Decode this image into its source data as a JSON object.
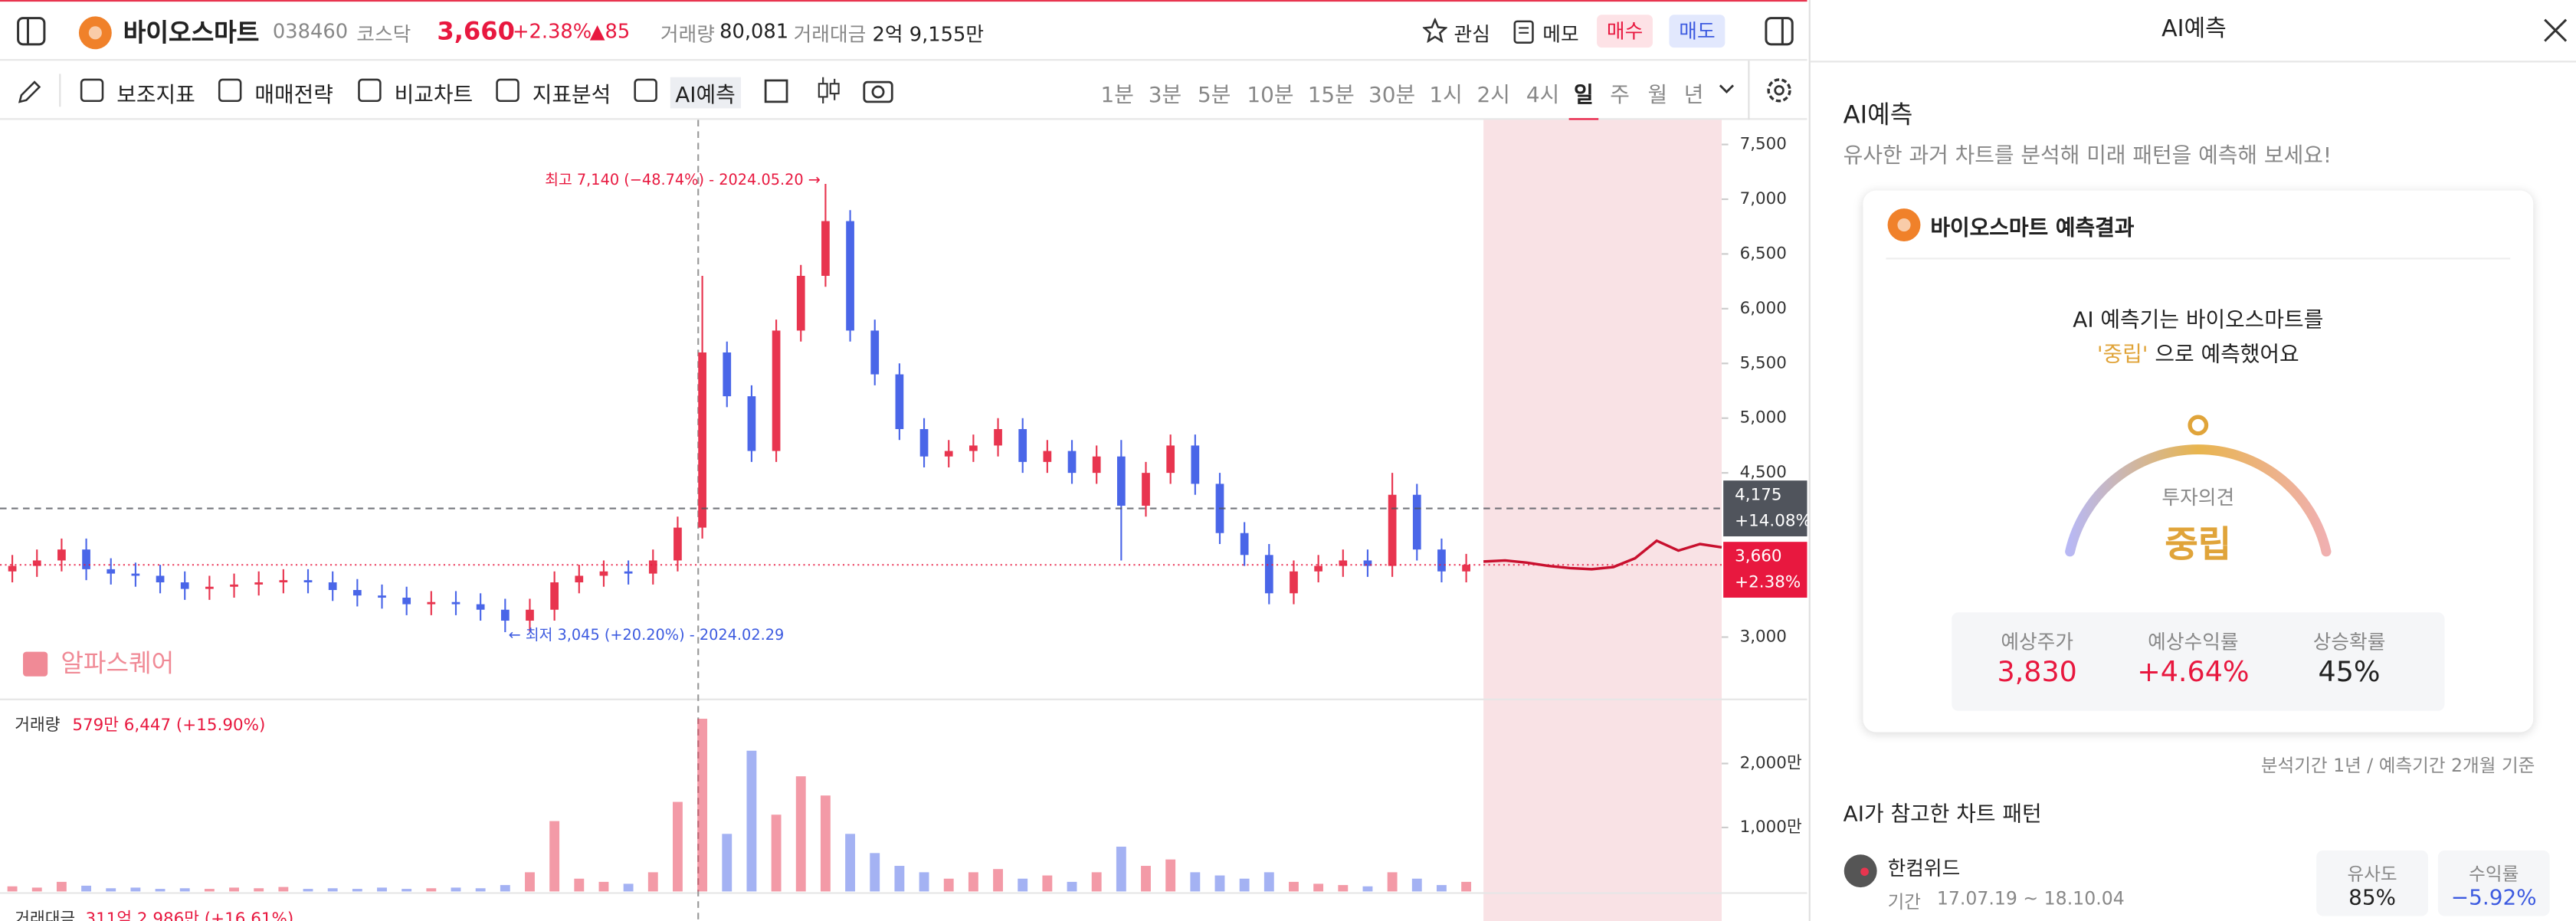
{
  "header": {
    "name": "바이오스마트",
    "code": "038460",
    "market": "코스닥",
    "price": "3,660",
    "change_pct": "+2.38%",
    "change": "▲85",
    "volume_label": "거래량",
    "volume": "80,081",
    "amount_label": "거래대금",
    "amount": "2억 9,155만",
    "watch": "관심",
    "memo": "메모",
    "buy": "매수",
    "sell": "매도"
  },
  "toolbar": {
    "tools": [
      "보조지표",
      "매매전략",
      "비교차트",
      "지표분석",
      "AI예측"
    ],
    "intervals": [
      "1분",
      "3분",
      "5분",
      "10분",
      "15분",
      "30분",
      "1시",
      "2시",
      "4시",
      "일",
      "주",
      "월",
      "년"
    ]
  },
  "chart_data": {
    "type": "candlestick",
    "ylim": [
      2446,
      7725
    ],
    "yticks": [
      {
        "value": 3000,
        "label": "3,000"
      },
      {
        "value": 4500,
        "label": "4,500"
      },
      {
        "value": 5000,
        "label": "5,000"
      },
      {
        "value": 5500,
        "label": "5,500"
      },
      {
        "value": 6000,
        "label": "6,000"
      },
      {
        "value": 6500,
        "label": "6,500"
      },
      {
        "value": 7000,
        "label": "7,000"
      },
      {
        "value": 7500,
        "label": "7,500"
      }
    ],
    "up_color": "#e8354f",
    "down_color": "#4a66e8",
    "candles": {
      "open": [
        3600,
        3650,
        3700,
        3800,
        3620,
        3580,
        3560,
        3500,
        3440,
        3460,
        3480,
        3500,
        3520,
        3500,
        3430,
        3380,
        3360,
        3300,
        3320,
        3300,
        3250,
        3150,
        3250,
        3500,
        3560,
        3600,
        3580,
        3700,
        4000,
        5600,
        5200,
        4700,
        5800,
        6300,
        6800,
        5800,
        5400,
        4900,
        4650,
        4700,
        4750,
        4900,
        4600,
        4700,
        4500,
        4650,
        4200,
        4500,
        4750,
        4400,
        3950,
        3750,
        3400,
        3600,
        3650,
        3700,
        3650,
        4300,
        3800,
        3600
      ],
      "high": [
        3750,
        3800,
        3900,
        3900,
        3720,
        3680,
        3660,
        3600,
        3560,
        3580,
        3600,
        3620,
        3620,
        3600,
        3530,
        3480,
        3460,
        3420,
        3420,
        3400,
        3350,
        3350,
        3600,
        3660,
        3700,
        3700,
        3800,
        4100,
        6300,
        5700,
        5300,
        5900,
        6400,
        7140,
        6900,
        5900,
        5500,
        5000,
        4800,
        4850,
        5000,
        5000,
        4800,
        4800,
        4750,
        4800,
        4600,
        4850,
        4850,
        4500,
        4050,
        3850,
        3700,
        3750,
        3800,
        3800,
        4500,
        4400,
        3900,
        3760
      ],
      "low": [
        3500,
        3550,
        3600,
        3520,
        3480,
        3460,
        3400,
        3340,
        3340,
        3360,
        3380,
        3400,
        3400,
        3330,
        3280,
        3260,
        3200,
        3200,
        3200,
        3150,
        3045,
        3050,
        3150,
        3400,
        3460,
        3480,
        3480,
        3600,
        3900,
        5100,
        4600,
        4600,
        5700,
        6200,
        5700,
        5300,
        4800,
        4550,
        4550,
        4600,
        4650,
        4500,
        4500,
        4400,
        4400,
        3700,
        4100,
        4400,
        4300,
        3850,
        3650,
        3300,
        3300,
        3500,
        3550,
        3550,
        3550,
        3700,
        3500,
        3500
      ],
      "close": [
        3650,
        3700,
        3800,
        3620,
        3580,
        3560,
        3500,
        3440,
        3460,
        3480,
        3500,
        3520,
        3500,
        3430,
        3380,
        3360,
        3300,
        3320,
        3300,
        3250,
        3150,
        3250,
        3500,
        3560,
        3600,
        3580,
        3700,
        4000,
        5600,
        5200,
        4700,
        5800,
        6300,
        6800,
        5800,
        5400,
        4900,
        4650,
        4700,
        4750,
        4900,
        4600,
        4700,
        4500,
        4650,
        4200,
        4500,
        4750,
        4400,
        3950,
        3750,
        3400,
        3600,
        3650,
        3700,
        3650,
        4300,
        3800,
        3600,
        3660
      ]
    },
    "high_note": "최고 7,140 (−48.74%) - 2024.05.20 →",
    "low_note": "← 최저 3,045 (+20.20%) - 2024.02.29",
    "markers": [
      {
        "value": 4175,
        "label": "4,175",
        "change": "+14.08%",
        "color": "#50545c"
      },
      {
        "value": 3660,
        "label": "3,660",
        "change": "+2.38%",
        "color": "#e8183f"
      }
    ],
    "forecast": {
      "values": [
        3690,
        3700,
        3680,
        3650,
        3630,
        3620,
        3640,
        3720,
        3880,
        3790,
        3850,
        3820
      ],
      "color": "#c8102e"
    },
    "watermark": "알파스퀘어",
    "volume": {
      "title": "거래량",
      "summary": "579만 6,447 (+15.90%)",
      "ylim": [
        0,
        2900
      ],
      "yticks": [
        {
          "value": 1000,
          "label": "1,000만"
        },
        {
          "value": 2000,
          "label": "2,000만"
        }
      ],
      "values": [
        80,
        60,
        150,
        90,
        50,
        60,
        40,
        50,
        40,
        60,
        50,
        70,
        40,
        50,
        40,
        60,
        40,
        50,
        60,
        50,
        100,
        300,
        1100,
        200,
        150,
        120,
        300,
        1400,
        2700,
        900,
        2200,
        1200,
        1800,
        1500,
        900,
        600,
        400,
        300,
        200,
        300,
        350,
        200,
        250,
        150,
        300,
        700,
        400,
        500,
        300,
        250,
        200,
        300,
        150,
        120,
        100,
        80,
        300,
        200,
        100,
        150
      ]
    },
    "amount": {
      "title": "거래대금",
      "summary": "311억 2,986만 (+16.61%)"
    }
  },
  "ai_panel": {
    "header": "AI예측",
    "title": "AI예측",
    "subtitle": "유사한 과거 차트를 분석해 미래 패턴을 예측해 보세요!",
    "card_title": "바이오스마트 예측결과",
    "line1": "AI 예측기는 바이오스마트를",
    "opinion_quote": "'중립'",
    "line2": " 으로 예측했어요",
    "gauge_label": "투자의견",
    "gauge_value": "중립",
    "stats": [
      {
        "label": "예상주가",
        "value": "3,830"
      },
      {
        "label": "예상수익률",
        "value": "+4.64%"
      },
      {
        "label": "상승확률",
        "value": "45%"
      }
    ],
    "basis": "분석기간 1년 / 예측기간 2개월 기준",
    "patterns_title": "AI가 참고한 차트 패턴",
    "pattern": {
      "name": "한컴위드",
      "period_label": "기간",
      "period": "17.07.19 ~ 18.10.04",
      "similarity_label": "유사도",
      "similarity": "85%",
      "return_label": "수익률",
      "return": "−5.92%"
    }
  }
}
